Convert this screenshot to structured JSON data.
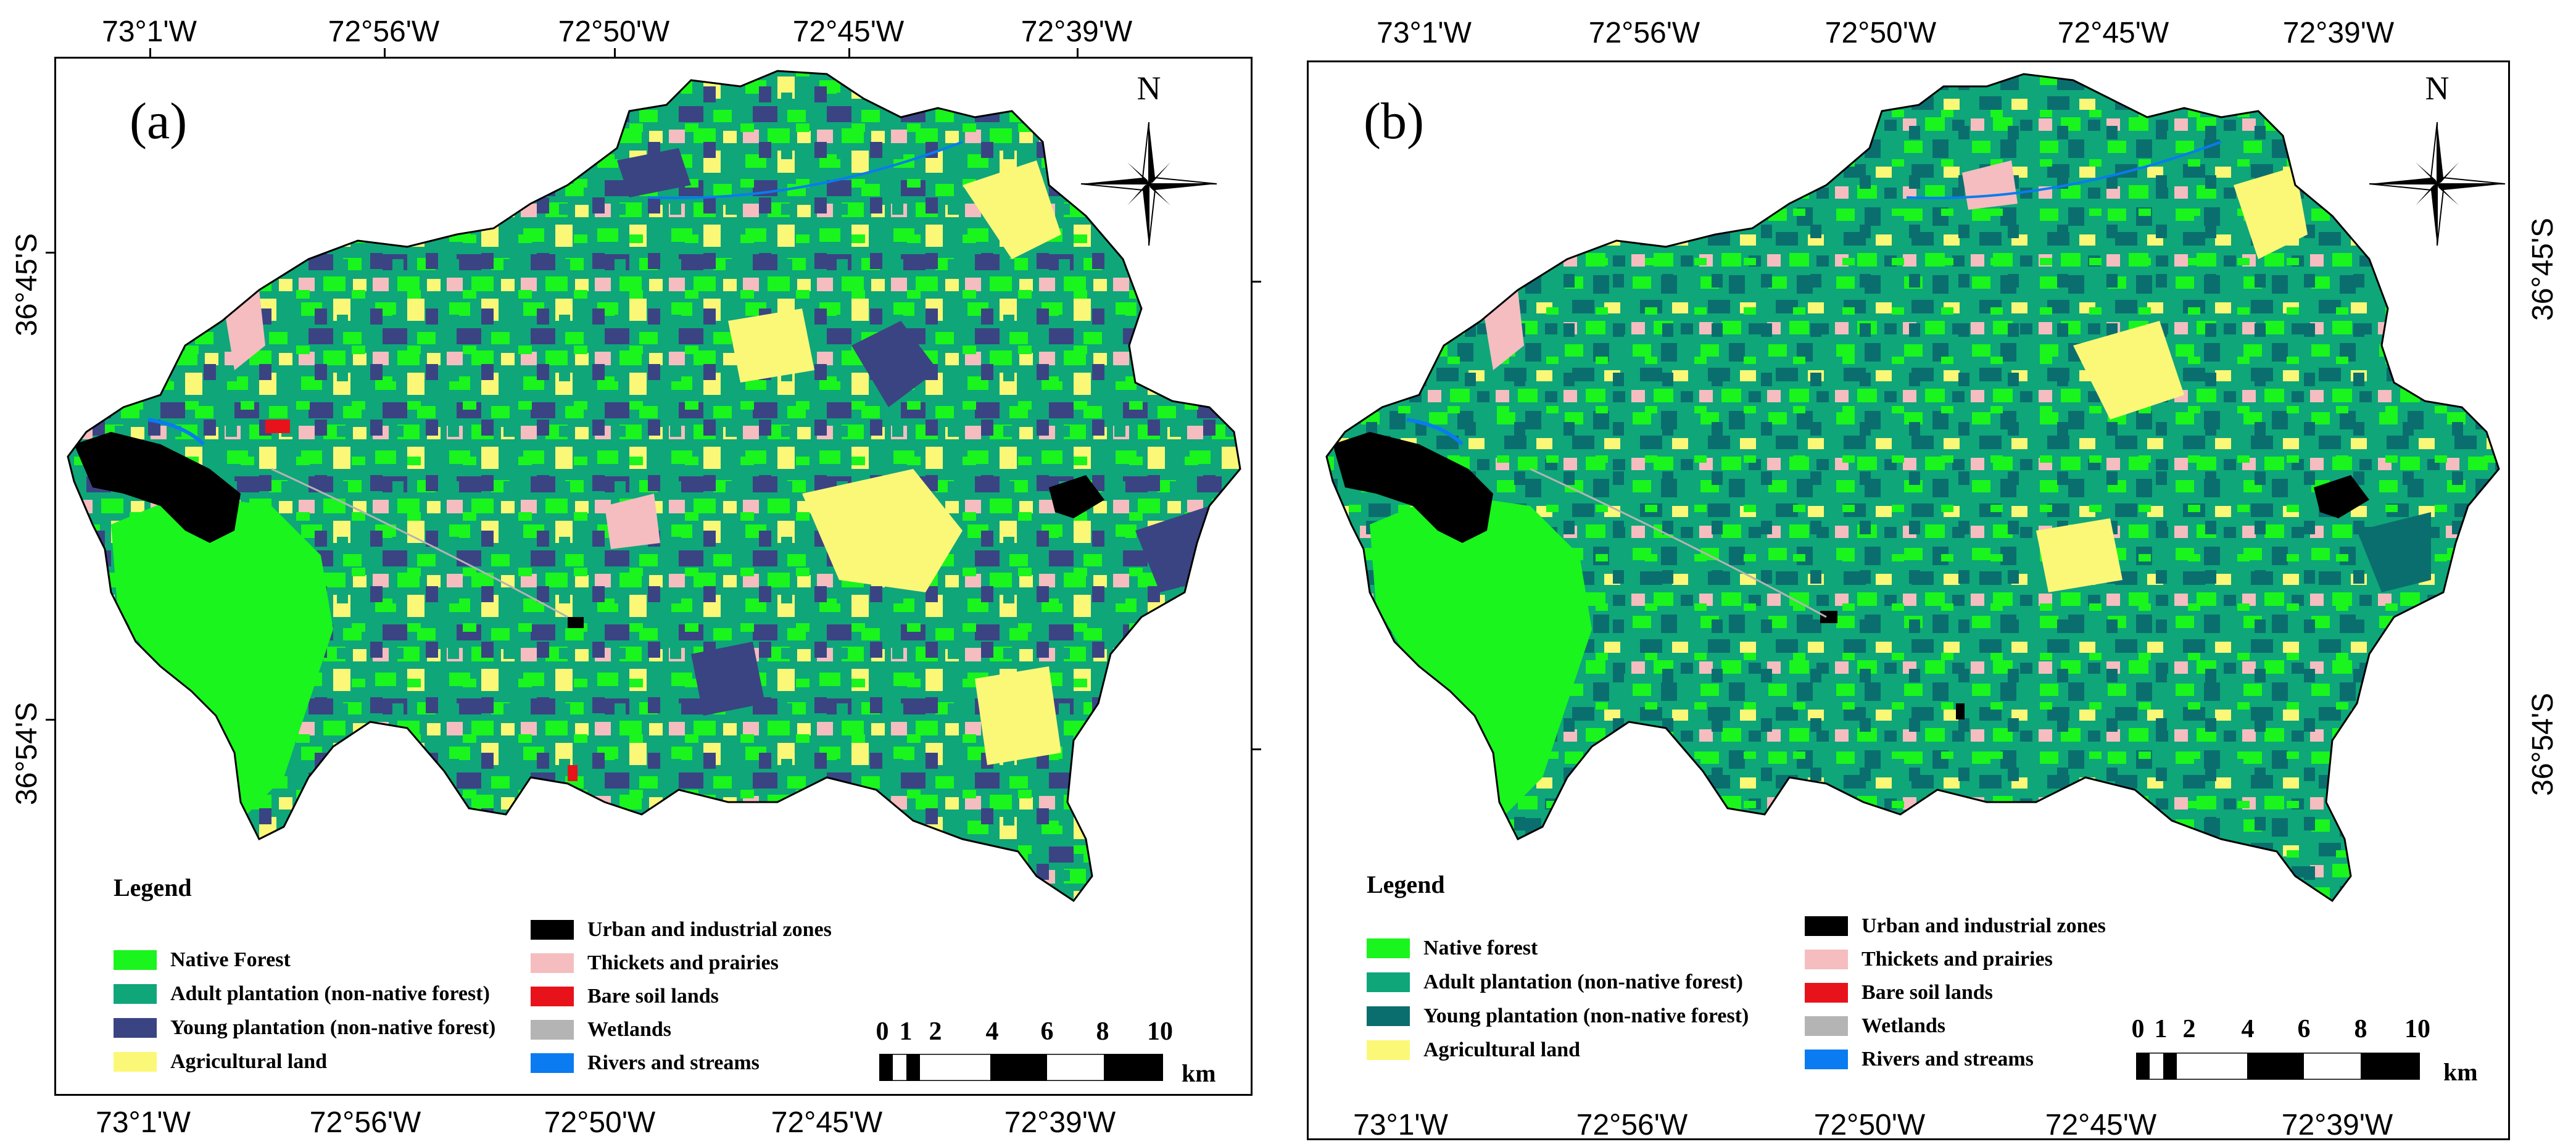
{
  "colors": {
    "native_forest": "#19f51d",
    "adult_plantation": "#0fa67a",
    "young_plantation": "#3a4483",
    "young_plantation_b": "#0b6e6e",
    "agricultural": "#fbf877",
    "urban": "#000000",
    "thickets": "#f5bdbf",
    "bare_soil": "#e8121b",
    "wetlands": "#b4b4b4",
    "rivers": "#0a7bf0"
  },
  "top_lon_labels": [
    "73°1'W",
    "72°56'W",
    "72°50'W",
    "72°45'W",
    "72°39'W"
  ],
  "bottom_lon_labels": [
    "73°1'W",
    "72°56'W",
    "72°50'W",
    "72°45'W",
    "72°39'W"
  ],
  "lat_labels": [
    "36°45'S",
    "36°54'S"
  ],
  "panels": [
    {
      "label": "(a)",
      "north": "N",
      "legend": {
        "title": "Legend",
        "left_items": [
          {
            "label": "Native Forest",
            "color_key": "native_forest"
          },
          {
            "label": "Adult plantation (non-native forest)",
            "color_key": "adult_plantation"
          },
          {
            "label": "Young plantation (non-native forest)",
            "color_key": "young_plantation"
          },
          {
            "label": "Agricultural land",
            "color_key": "agricultural"
          }
        ],
        "right_items": [
          {
            "label": "Urban and industrial zones",
            "color_key": "urban"
          },
          {
            "label": "Thickets and prairies",
            "color_key": "thickets"
          },
          {
            "label": "Bare soil lands",
            "color_key": "bare_soil"
          },
          {
            "label": "Wetlands",
            "color_key": "wetlands"
          },
          {
            "label": "Rivers and streams",
            "color_key": "rivers"
          }
        ]
      },
      "scale": {
        "ticks": [
          "0",
          "1",
          "2",
          "4",
          "6",
          "8",
          "10"
        ],
        "unit": "km"
      }
    },
    {
      "label": "(b)",
      "north": "N",
      "legend": {
        "title": "Legend",
        "left_items": [
          {
            "label": "Native forest",
            "color_key": "native_forest"
          },
          {
            "label": "Adult plantation (non-native forest)",
            "color_key": "adult_plantation"
          },
          {
            "label": "Young plantation (non-native forest)",
            "color_key": "young_plantation_b"
          },
          {
            "label": "Agricultural land",
            "color_key": "agricultural"
          }
        ],
        "right_items": [
          {
            "label": "Urban and industrial zones",
            "color_key": "urban"
          },
          {
            "label": "Thickets and prairies",
            "color_key": "thickets"
          },
          {
            "label": "Bare soil lands",
            "color_key": "bare_soil"
          },
          {
            "label": "Wetlands",
            "color_key": "wetlands"
          },
          {
            "label": "Rivers and streams",
            "color_key": "rivers"
          }
        ]
      },
      "scale": {
        "ticks": [
          "0",
          "1",
          "2",
          "4",
          "6",
          "8",
          "10"
        ],
        "unit": "km"
      }
    }
  ]
}
